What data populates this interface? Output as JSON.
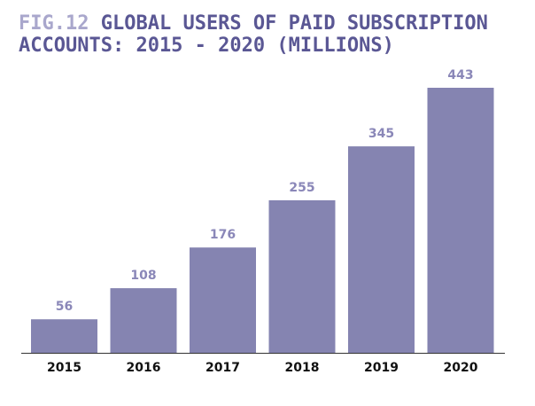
{
  "figure": {
    "label": "FIG.12",
    "title": "GLOBAL USERS OF PAID SUBSCRIPTION ACCOUNTS: 2015 - 2020 (MILLIONS)"
  },
  "colors": {
    "bar": "#8584b1",
    "axis": "#333333",
    "value_label": "#8a87b8",
    "title": "#5a5794",
    "fig_label": "#a9a7cc"
  },
  "chart_data": {
    "type": "bar",
    "title": "GLOBAL USERS OF PAID SUBSCRIPTION ACCOUNTS: 2015 - 2020 (MILLIONS)",
    "categories": [
      "2015",
      "2016",
      "2017",
      "2018",
      "2019",
      "2020"
    ],
    "values": [
      56,
      108,
      176,
      255,
      345,
      443
    ],
    "xlabel": "",
    "ylabel": "",
    "ylim": [
      0,
      443
    ],
    "grid": false,
    "legend": "none",
    "data_labels": true
  }
}
